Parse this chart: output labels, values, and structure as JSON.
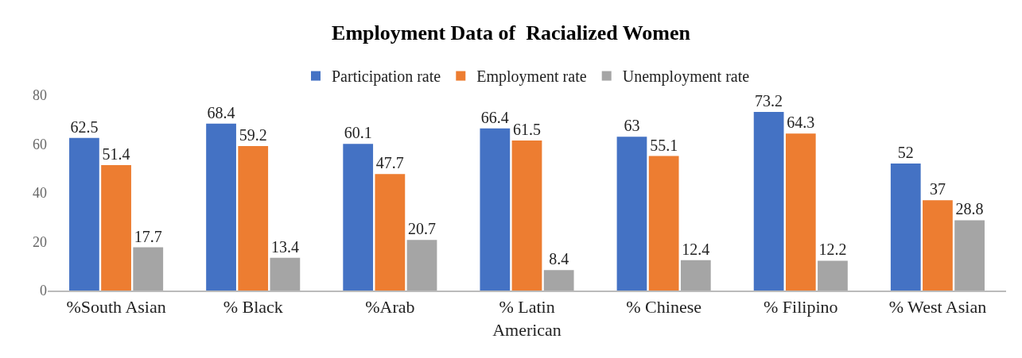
{
  "chart_data": {
    "type": "bar",
    "title": "Employment Data of  Racialized Women",
    "categories": [
      "%South Asian",
      "% Black",
      "%Arab",
      "% Latin American",
      "% Chinese",
      "% Filipino",
      "% West Asian"
    ],
    "series": [
      {
        "name": "Participation rate",
        "color": "#4472c4",
        "values": [
          62.5,
          68.4,
          60.1,
          66.4,
          63,
          73.2,
          52
        ]
      },
      {
        "name": "Employment rate",
        "color": "#ed7d31",
        "values": [
          51.4,
          59.2,
          47.7,
          61.5,
          55.1,
          64.3,
          37
        ]
      },
      {
        "name": "Unemployment rate",
        "color": "#a5a5a5",
        "values": [
          17.7,
          13.4,
          20.7,
          8.4,
          12.4,
          12.2,
          28.8
        ]
      }
    ],
    "ylim": [
      0,
      80
    ],
    "yticks": [
      0,
      20,
      40,
      60,
      80
    ],
    "grid": false,
    "legend": "top",
    "data_labels": true
  }
}
